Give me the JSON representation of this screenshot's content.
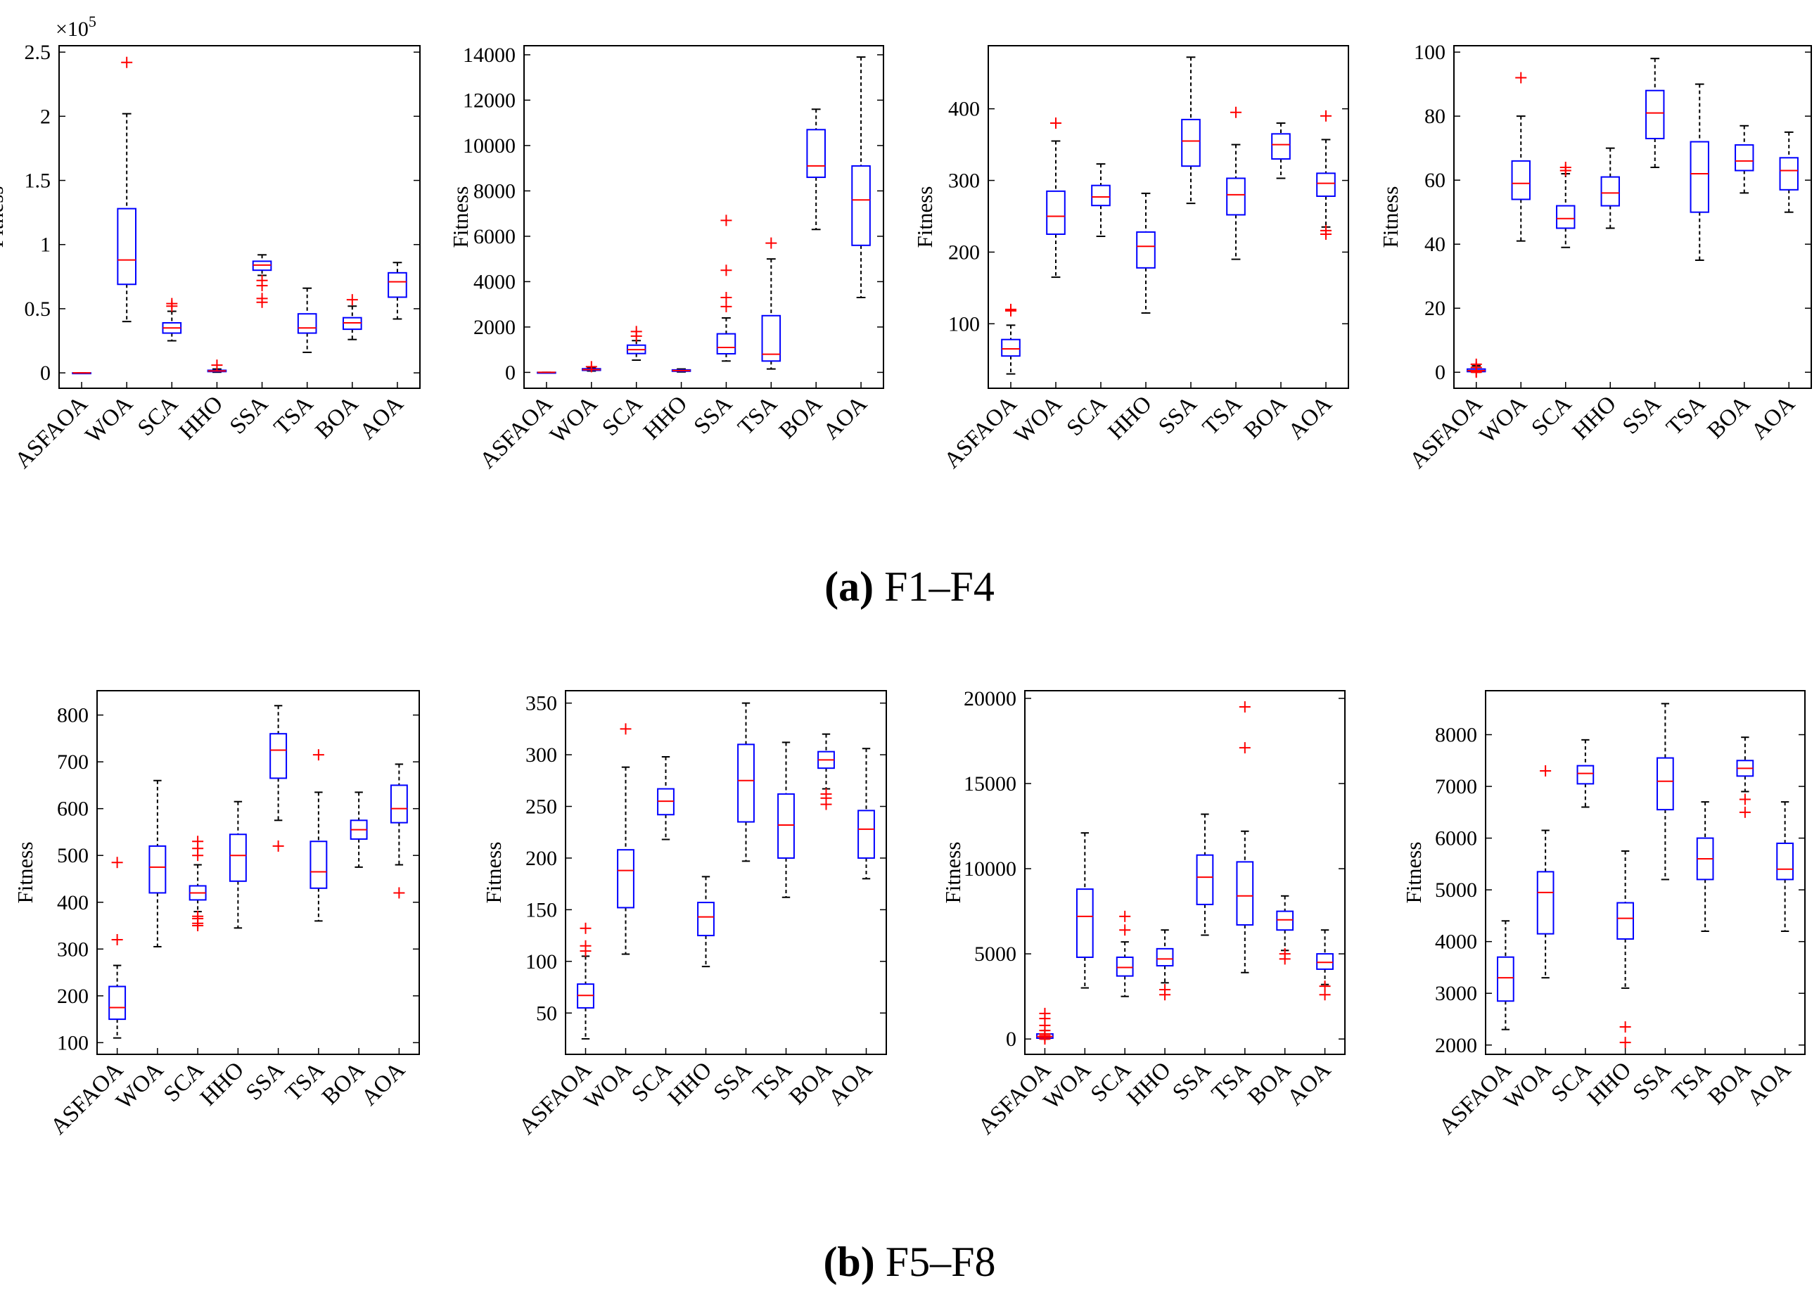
{
  "captions": [
    {
      "letter": "(a)",
      "text": " F1–F4"
    },
    {
      "letter": "(b)",
      "text": " F5–F8"
    }
  ],
  "colors": {
    "box": "#0000ff",
    "median": "#ff0000",
    "outlier": "#ff0000",
    "whisker": "#000000",
    "axis": "#000000"
  },
  "chart_data": [
    {
      "type": "box",
      "panel": "F1",
      "ylabel": "Fitness",
      "ylim": [
        -0.12,
        2.55
      ],
      "yticks": [
        0,
        0.5,
        1,
        1.5,
        2,
        2.5
      ],
      "ytick_labels": [
        "0",
        "0.5",
        "1",
        "1.5",
        "2",
        "2.5"
      ],
      "exponent_label": "×10",
      "exponent_power": "5",
      "categories": [
        "ASFAOA",
        "WOA",
        "SCA",
        "HHO",
        "SSA",
        "TSA",
        "BOA",
        "AOA"
      ],
      "boxes": [
        {
          "whislo": 0,
          "q1": 0,
          "med": 0,
          "q3": 0,
          "whishi": 0,
          "fliers": []
        },
        {
          "whislo": 0.4,
          "q1": 0.69,
          "med": 0.88,
          "q3": 1.28,
          "whishi": 2.02,
          "fliers": [
            2.42
          ]
        },
        {
          "whislo": 0.25,
          "q1": 0.31,
          "med": 0.35,
          "q3": 0.39,
          "whishi": 0.48,
          "fliers": [
            0.52,
            0.54
          ]
        },
        {
          "whislo": 0.005,
          "q1": 0.01,
          "med": 0.015,
          "q3": 0.02,
          "whishi": 0.03,
          "fliers": [
            0.06
          ]
        },
        {
          "whislo": 0.76,
          "q1": 0.8,
          "med": 0.84,
          "q3": 0.87,
          "whishi": 0.92,
          "fliers": [
            0.55,
            0.58,
            0.68,
            0.72
          ]
        },
        {
          "whislo": 0.16,
          "q1": 0.31,
          "med": 0.35,
          "q3": 0.46,
          "whishi": 0.66,
          "fliers": []
        },
        {
          "whislo": 0.26,
          "q1": 0.34,
          "med": 0.39,
          "q3": 0.43,
          "whishi": 0.52,
          "fliers": [
            0.57
          ]
        },
        {
          "whislo": 0.42,
          "q1": 0.59,
          "med": 0.71,
          "q3": 0.78,
          "whishi": 0.86,
          "fliers": []
        }
      ]
    },
    {
      "type": "box",
      "panel": "F2",
      "ylabel": "Fitness",
      "ylim": [
        -700,
        14400
      ],
      "yticks": [
        0,
        2000,
        4000,
        6000,
        8000,
        10000,
        12000,
        14000
      ],
      "ytick_labels": [
        "0",
        "2000",
        "4000",
        "6000",
        "8000",
        "10000",
        "12000",
        "14000"
      ],
      "categories": [
        "ASFAOA",
        "WOA",
        "SCA",
        "HHO",
        "SSA",
        "TSA",
        "BOA",
        "AOA"
      ],
      "boxes": [
        {
          "whislo": 0,
          "q1": 0,
          "med": 0,
          "q3": 0,
          "whishi": 0,
          "fliers": []
        },
        {
          "whislo": 60,
          "q1": 90,
          "med": 120,
          "q3": 160,
          "whishi": 200,
          "fliers": [
            250
          ]
        },
        {
          "whislo": 540,
          "q1": 830,
          "med": 1000,
          "q3": 1200,
          "whishi": 1400,
          "fliers": [
            1600,
            1800
          ]
        },
        {
          "whislo": 20,
          "q1": 50,
          "med": 80,
          "q3": 110,
          "whishi": 150,
          "fliers": []
        },
        {
          "whislo": 500,
          "q1": 820,
          "med": 1100,
          "q3": 1700,
          "whishi": 2400,
          "fliers": [
            2900,
            3300,
            4500,
            6700
          ]
        },
        {
          "whislo": 150,
          "q1": 500,
          "med": 800,
          "q3": 2500,
          "whishi": 5000,
          "fliers": [
            5700
          ]
        },
        {
          "whislo": 6300,
          "q1": 8600,
          "med": 9100,
          "q3": 10700,
          "whishi": 11600,
          "fliers": []
        },
        {
          "whislo": 3300,
          "q1": 5600,
          "med": 7600,
          "q3": 9100,
          "whishi": 13900,
          "fliers": []
        }
      ]
    },
    {
      "type": "box",
      "panel": "F3",
      "ylabel": "Fitness",
      "ylim": [
        10,
        488
      ],
      "yticks": [
        100,
        200,
        300,
        400
      ],
      "ytick_labels": [
        "100",
        "200",
        "300",
        "400"
      ],
      "categories": [
        "ASFAOA",
        "WOA",
        "SCA",
        "HHO",
        "SSA",
        "TSA",
        "BOA",
        "AOA"
      ],
      "boxes": [
        {
          "whislo": 30,
          "q1": 55,
          "med": 65,
          "q3": 78,
          "whishi": 98,
          "fliers": [
            118,
            120
          ]
        },
        {
          "whislo": 165,
          "q1": 225,
          "med": 250,
          "q3": 285,
          "whishi": 355,
          "fliers": [
            380
          ]
        },
        {
          "whislo": 222,
          "q1": 265,
          "med": 277,
          "q3": 293,
          "whishi": 323,
          "fliers": []
        },
        {
          "whislo": 115,
          "q1": 178,
          "med": 208,
          "q3": 228,
          "whishi": 282,
          "fliers": []
        },
        {
          "whislo": 268,
          "q1": 320,
          "med": 355,
          "q3": 385,
          "whishi": 472,
          "fliers": []
        },
        {
          "whislo": 190,
          "q1": 252,
          "med": 280,
          "q3": 303,
          "whishi": 350,
          "fliers": [
            395
          ]
        },
        {
          "whislo": 303,
          "q1": 330,
          "med": 350,
          "q3": 365,
          "whishi": 380,
          "fliers": []
        },
        {
          "whislo": 235,
          "q1": 278,
          "med": 296,
          "q3": 310,
          "whishi": 357,
          "fliers": [
            225,
            230,
            390
          ]
        }
      ]
    },
    {
      "type": "box",
      "panel": "F4",
      "ylabel": "Fitness",
      "ylim": [
        -5,
        102
      ],
      "yticks": [
        0,
        20,
        40,
        60,
        80,
        100
      ],
      "ytick_labels": [
        "0",
        "20",
        "40",
        "60",
        "80",
        "100"
      ],
      "categories": [
        "ASFAOA",
        "WOA",
        "SCA",
        "HHO",
        "SSA",
        "TSA",
        "BOA",
        "AOA"
      ],
      "boxes": [
        {
          "whislo": 0,
          "q1": 0.2,
          "med": 0.5,
          "q3": 1,
          "whishi": 2,
          "fliers": [
            0,
            0.3,
            1.5,
            2.5
          ]
        },
        {
          "whislo": 41,
          "q1": 54,
          "med": 59,
          "q3": 66,
          "whishi": 80,
          "fliers": [
            92
          ]
        },
        {
          "whislo": 39,
          "q1": 45,
          "med": 48,
          "q3": 52,
          "whishi": 62,
          "fliers": [
            63,
            64
          ]
        },
        {
          "whislo": 45,
          "q1": 52,
          "med": 56,
          "q3": 61,
          "whishi": 70,
          "fliers": []
        },
        {
          "whislo": 64,
          "q1": 73,
          "med": 81,
          "q3": 88,
          "whishi": 98,
          "fliers": []
        },
        {
          "whislo": 35,
          "q1": 50,
          "med": 62,
          "q3": 72,
          "whishi": 90,
          "fliers": []
        },
        {
          "whislo": 56,
          "q1": 63,
          "med": 66,
          "q3": 71,
          "whishi": 77,
          "fliers": []
        },
        {
          "whislo": 50,
          "q1": 57,
          "med": 63,
          "q3": 67,
          "whishi": 75,
          "fliers": []
        }
      ]
    },
    {
      "type": "box",
      "panel": "F5",
      "ylabel": "Fitness",
      "ylim": [
        75,
        852
      ],
      "yticks": [
        100,
        200,
        300,
        400,
        500,
        600,
        700,
        800
      ],
      "ytick_labels": [
        "100",
        "200",
        "300",
        "400",
        "500",
        "600",
        "700",
        "800"
      ],
      "categories": [
        "ASFAOA",
        "WOA",
        "SCA",
        "HHO",
        "SSA",
        "TSA",
        "BOA",
        "AOA"
      ],
      "boxes": [
        {
          "whislo": 110,
          "q1": 150,
          "med": 175,
          "q3": 220,
          "whishi": 265,
          "fliers": [
            320,
            485
          ]
        },
        {
          "whislo": 305,
          "q1": 420,
          "med": 475,
          "q3": 520,
          "whishi": 660,
          "fliers": []
        },
        {
          "whislo": 380,
          "q1": 405,
          "med": 420,
          "q3": 435,
          "whishi": 480,
          "fliers": [
            350,
            355,
            365,
            370,
            500,
            515,
            530
          ]
        },
        {
          "whislo": 345,
          "q1": 445,
          "med": 500,
          "q3": 545,
          "whishi": 615,
          "fliers": []
        },
        {
          "whislo": 575,
          "q1": 665,
          "med": 725,
          "q3": 760,
          "whishi": 820,
          "fliers": [
            520
          ]
        },
        {
          "whislo": 360,
          "q1": 430,
          "med": 465,
          "q3": 530,
          "whishi": 635,
          "fliers": [
            715
          ]
        },
        {
          "whislo": 475,
          "q1": 535,
          "med": 555,
          "q3": 575,
          "whishi": 635,
          "fliers": []
        },
        {
          "whislo": 480,
          "q1": 570,
          "med": 600,
          "q3": 650,
          "whishi": 695,
          "fliers": [
            420
          ]
        }
      ]
    },
    {
      "type": "box",
      "panel": "F6",
      "ylabel": "Fitness",
      "ylim": [
        10,
        362
      ],
      "yticks": [
        50,
        100,
        150,
        200,
        250,
        300,
        350
      ],
      "ytick_labels": [
        "50",
        "100",
        "150",
        "200",
        "250",
        "300",
        "350"
      ],
      "categories": [
        "ASFAOA",
        "WOA",
        "SCA",
        "HHO",
        "SSA",
        "TSA",
        "BOA",
        "AOA"
      ],
      "boxes": [
        {
          "whislo": 25,
          "q1": 55,
          "med": 67,
          "q3": 78,
          "whishi": 105,
          "fliers": [
            110,
            115,
            132
          ]
        },
        {
          "whislo": 107,
          "q1": 152,
          "med": 188,
          "q3": 208,
          "whishi": 288,
          "fliers": [
            325
          ]
        },
        {
          "whislo": 218,
          "q1": 242,
          "med": 255,
          "q3": 267,
          "whishi": 298,
          "fliers": []
        },
        {
          "whislo": 95,
          "q1": 125,
          "med": 143,
          "q3": 157,
          "whishi": 182,
          "fliers": []
        },
        {
          "whislo": 197,
          "q1": 235,
          "med": 275,
          "q3": 310,
          "whishi": 350,
          "fliers": []
        },
        {
          "whislo": 162,
          "q1": 200,
          "med": 232,
          "q3": 262,
          "whishi": 312,
          "fliers": []
        },
        {
          "whislo": 267,
          "q1": 287,
          "med": 295,
          "q3": 303,
          "whishi": 320,
          "fliers": [
            252,
            258,
            262
          ]
        },
        {
          "whislo": 180,
          "q1": 200,
          "med": 228,
          "q3": 246,
          "whishi": 306,
          "fliers": []
        }
      ]
    },
    {
      "type": "box",
      "panel": "F7",
      "ylabel": "Fitness",
      "ylim": [
        -900,
        20450
      ],
      "yticks": [
        0,
        5000,
        10000,
        15000,
        20000
      ],
      "ytick_labels": [
        "0",
        "5000",
        "10000",
        "15000",
        "20000"
      ],
      "categories": [
        "ASFAOA",
        "WOA",
        "SCA",
        "HHO",
        "SSA",
        "TSA",
        "BOA",
        "AOA"
      ],
      "boxes": [
        {
          "whislo": 0,
          "q1": 50,
          "med": 150,
          "q3": 300,
          "whishi": 500,
          "fliers": [
            0,
            100,
            200,
            300,
            500,
            800,
            1200,
            1500
          ]
        },
        {
          "whislo": 3000,
          "q1": 4800,
          "med": 7200,
          "q3": 8800,
          "whishi": 12100,
          "fliers": []
        },
        {
          "whislo": 2500,
          "q1": 3700,
          "med": 4200,
          "q3": 4800,
          "whishi": 5700,
          "fliers": [
            6400,
            7200
          ]
        },
        {
          "whislo": 3300,
          "q1": 4300,
          "med": 4700,
          "q3": 5300,
          "whishi": 6400,
          "fliers": [
            2600,
            2900
          ]
        },
        {
          "whislo": 6100,
          "q1": 7900,
          "med": 9500,
          "q3": 10800,
          "whishi": 13200,
          "fliers": []
        },
        {
          "whislo": 3900,
          "q1": 6700,
          "med": 8400,
          "q3": 10400,
          "whishi": 12200,
          "fliers": [
            17100,
            19500
          ]
        },
        {
          "whislo": 5200,
          "q1": 6400,
          "med": 7000,
          "q3": 7500,
          "whishi": 8400,
          "fliers": [
            4700,
            5000
          ]
        },
        {
          "whislo": 3200,
          "q1": 4100,
          "med": 4500,
          "q3": 5000,
          "whishi": 6400,
          "fliers": [
            2600,
            3100
          ]
        }
      ]
    },
    {
      "type": "box",
      "panel": "F8",
      "ylabel": "Fitness",
      "ylim": [
        1820,
        8850
      ],
      "yticks": [
        2000,
        3000,
        4000,
        5000,
        6000,
        7000,
        8000
      ],
      "ytick_labels": [
        "2000",
        "3000",
        "4000",
        "5000",
        "6000",
        "7000",
        "8000"
      ],
      "categories": [
        "ASFAOA",
        "WOA",
        "SCA",
        "HHO",
        "SSA",
        "TSA",
        "BOA",
        "AOA"
      ],
      "boxes": [
        {
          "whislo": 2300,
          "q1": 2850,
          "med": 3300,
          "q3": 3700,
          "whishi": 4400,
          "fliers": []
        },
        {
          "whislo": 3300,
          "q1": 4150,
          "med": 4950,
          "q3": 5350,
          "whishi": 6150,
          "fliers": [
            7300
          ]
        },
        {
          "whislo": 6600,
          "q1": 7050,
          "med": 7250,
          "q3": 7400,
          "whishi": 7900,
          "fliers": []
        },
        {
          "whislo": 3100,
          "q1": 4050,
          "med": 4450,
          "q3": 4750,
          "whishi": 5750,
          "fliers": [
            2050,
            2350
          ]
        },
        {
          "whislo": 5200,
          "q1": 6550,
          "med": 7100,
          "q3": 7550,
          "whishi": 8600,
          "fliers": []
        },
        {
          "whislo": 4200,
          "q1": 5200,
          "med": 5600,
          "q3": 6000,
          "whishi": 6700,
          "fliers": []
        },
        {
          "whislo": 6900,
          "q1": 7200,
          "med": 7350,
          "q3": 7500,
          "whishi": 7950,
          "fliers": [
            6500,
            6750
          ]
        },
        {
          "whislo": 4200,
          "q1": 5200,
          "med": 5400,
          "q3": 5900,
          "whishi": 6700,
          "fliers": []
        }
      ]
    }
  ]
}
